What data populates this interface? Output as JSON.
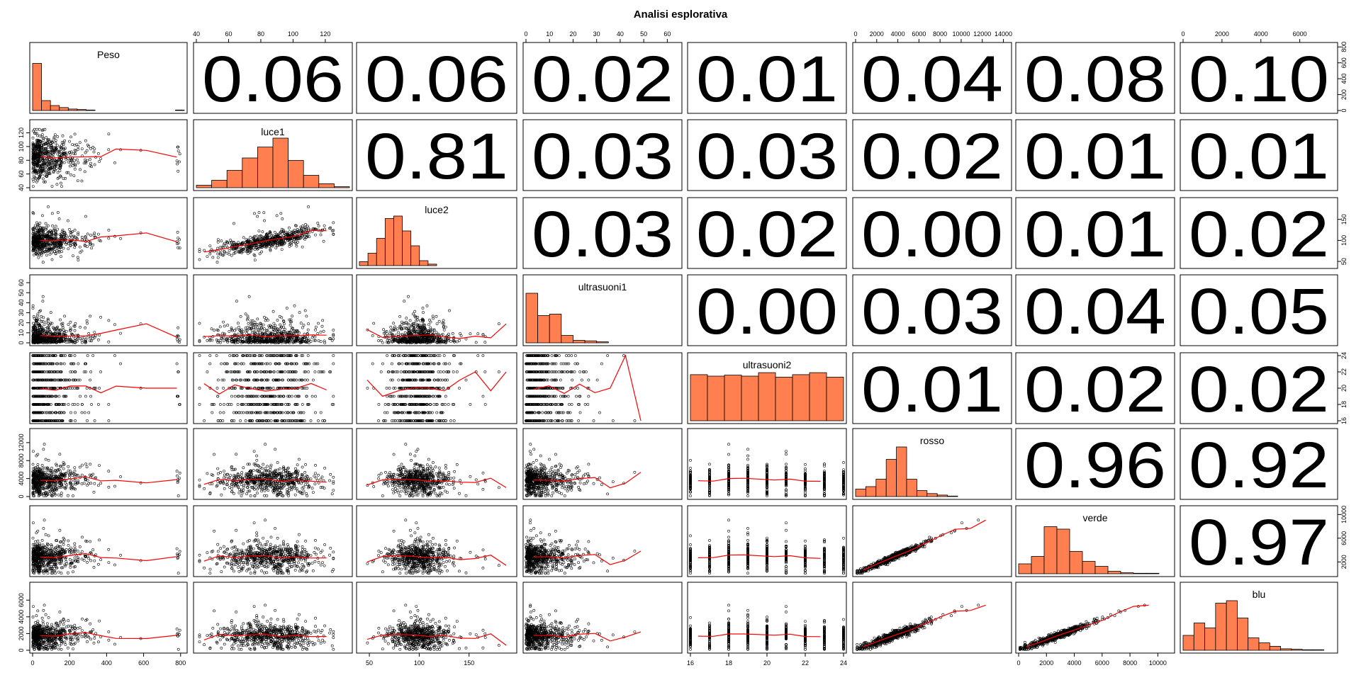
{
  "chart_data": {
    "type": "scatterplot-matrix",
    "title": "Analisi esplorativa",
    "variables": [
      "Peso",
      "luce1",
      "luce2",
      "ultrasuoni1",
      "ultrasuoni2",
      "rosso",
      "verde",
      "blu"
    ],
    "ranges": [
      [
        0,
        820
      ],
      [
        40,
        135
      ],
      [
        40,
        195
      ],
      [
        0,
        65
      ],
      [
        16,
        24
      ],
      [
        0,
        14500
      ],
      [
        0,
        11000
      ],
      [
        0,
        7800
      ]
    ],
    "histogram_ranges": [
      [
        0,
        820
      ],
      [
        40,
        135
      ],
      [
        40,
        195
      ],
      [
        0,
        65
      ],
      [
        16,
        24
      ],
      [
        0,
        14500
      ],
      [
        0,
        11000
      ],
      [
        0,
        7800
      ]
    ],
    "axis_ticks": {
      "top": {
        "luce1": [
          40,
          60,
          80,
          100,
          120
        ],
        "ultrasuoni1": [
          0,
          10,
          20,
          30,
          40,
          50,
          60
        ],
        "rosso": [
          0,
          2000,
          4000,
          6000,
          8000,
          10000,
          12000,
          14000
        ],
        "blu": [
          0,
          2000,
          4000,
          6000
        ]
      },
      "bottom": {
        "Peso": [
          0,
          200,
          400,
          600,
          800
        ],
        "luce2": [
          50,
          100,
          150
        ],
        "ultrasuoni2": [
          16,
          18,
          20,
          22,
          24
        ],
        "verde": [
          0,
          2000,
          4000,
          6000,
          8000,
          10000
        ]
      },
      "left": {
        "luce1": [
          40,
          60,
          80,
          100,
          120
        ],
        "ultrasuoni1": [
          0,
          10,
          20,
          30,
          40,
          50,
          60
        ],
        "rosso": [
          0,
          4000,
          8000,
          12000
        ],
        "blu": [
          0,
          2000,
          4000,
          6000
        ]
      },
      "right": {
        "Peso": [
          0,
          200,
          400,
          600,
          800
        ],
        "luce2": [
          50,
          100,
          150
        ],
        "ultrasuoni2": [
          16,
          18,
          20,
          22,
          24
        ],
        "verde": [
          2000,
          6000,
          10000
        ]
      }
    },
    "correlations": [
      {
        "row": 0,
        "col": 1,
        "value": "0.06"
      },
      {
        "row": 0,
        "col": 2,
        "value": "0.06"
      },
      {
        "row": 0,
        "col": 3,
        "value": "0.02"
      },
      {
        "row": 0,
        "col": 4,
        "value": "0.01"
      },
      {
        "row": 0,
        "col": 5,
        "value": "0.04"
      },
      {
        "row": 0,
        "col": 6,
        "value": "0.08"
      },
      {
        "row": 0,
        "col": 7,
        "value": "0.10"
      },
      {
        "row": 1,
        "col": 2,
        "value": "0.81"
      },
      {
        "row": 1,
        "col": 3,
        "value": "0.03"
      },
      {
        "row": 1,
        "col": 4,
        "value": "0.03"
      },
      {
        "row": 1,
        "col": 5,
        "value": "0.02"
      },
      {
        "row": 1,
        "col": 6,
        "value": "0.01"
      },
      {
        "row": 1,
        "col": 7,
        "value": "0.01"
      },
      {
        "row": 2,
        "col": 3,
        "value": "0.03"
      },
      {
        "row": 2,
        "col": 4,
        "value": "0.02"
      },
      {
        "row": 2,
        "col": 5,
        "value": "0.00"
      },
      {
        "row": 2,
        "col": 6,
        "value": "0.01"
      },
      {
        "row": 2,
        "col": 7,
        "value": "0.02"
      },
      {
        "row": 3,
        "col": 4,
        "value": "0.00"
      },
      {
        "row": 3,
        "col": 5,
        "value": "0.03"
      },
      {
        "row": 3,
        "col": 6,
        "value": "0.04"
      },
      {
        "row": 3,
        "col": 7,
        "value": "0.05"
      },
      {
        "row": 4,
        "col": 5,
        "value": "0.01"
      },
      {
        "row": 4,
        "col": 6,
        "value": "0.02"
      },
      {
        "row": 4,
        "col": 7,
        "value": "0.02"
      },
      {
        "row": 5,
        "col": 6,
        "value": "0.96"
      },
      {
        "row": 5,
        "col": 7,
        "value": "0.92"
      },
      {
        "row": 6,
        "col": 7,
        "value": "0.97"
      }
    ],
    "histograms": {
      "Peso": [
        0.95,
        0.2,
        0.1,
        0.06,
        0.03,
        0.02,
        0.01,
        0.0,
        0.0,
        0.0,
        0.0,
        0.0,
        0.0,
        0.0,
        0.0,
        0.0,
        0.01
      ],
      "luce1": [
        0.05,
        0.15,
        0.35,
        0.6,
        0.82,
        1.0,
        0.55,
        0.25,
        0.08,
        0.02
      ],
      "luce2": [
        0.08,
        0.25,
        0.55,
        0.95,
        1.0,
        0.7,
        0.4,
        0.1,
        0.03,
        0.0,
        0.0,
        0.0,
        0.0,
        0.0,
        0.0,
        0.0,
        0.0,
        0.0
      ],
      "ultrasuoni1": [
        1.0,
        0.55,
        0.58,
        0.15,
        0.05,
        0.04,
        0.02,
        0.0,
        0.0,
        0.0,
        0.0,
        0.0,
        0.0
      ],
      "ultrasuoni2": [
        0.93,
        0.9,
        0.92,
        0.9,
        0.97,
        0.88,
        0.93,
        0.97,
        0.88
      ],
      "rosso": [
        0.15,
        0.2,
        0.35,
        0.75,
        1.0,
        0.35,
        0.12,
        0.06,
        0.03,
        0.01,
        0.0,
        0.0,
        0.0,
        0.0,
        0.0
      ],
      "verde": [
        0.2,
        0.35,
        0.95,
        0.9,
        0.45,
        0.25,
        0.15,
        0.05,
        0.02,
        0.01,
        0.01,
        0.0
      ],
      "blu": [
        0.3,
        0.55,
        0.45,
        0.95,
        1.0,
        0.65,
        0.25,
        0.15,
        0.08,
        0.03,
        0.02,
        0.01,
        0.01,
        0.0
      ]
    },
    "colors": {
      "bar": "#ff7f50",
      "loess": "#ff0000",
      "points": "#000000"
    },
    "note_description": "pairs panel: lower triangle scatter with loess, diagonal histograms, upper triangle correlations"
  }
}
